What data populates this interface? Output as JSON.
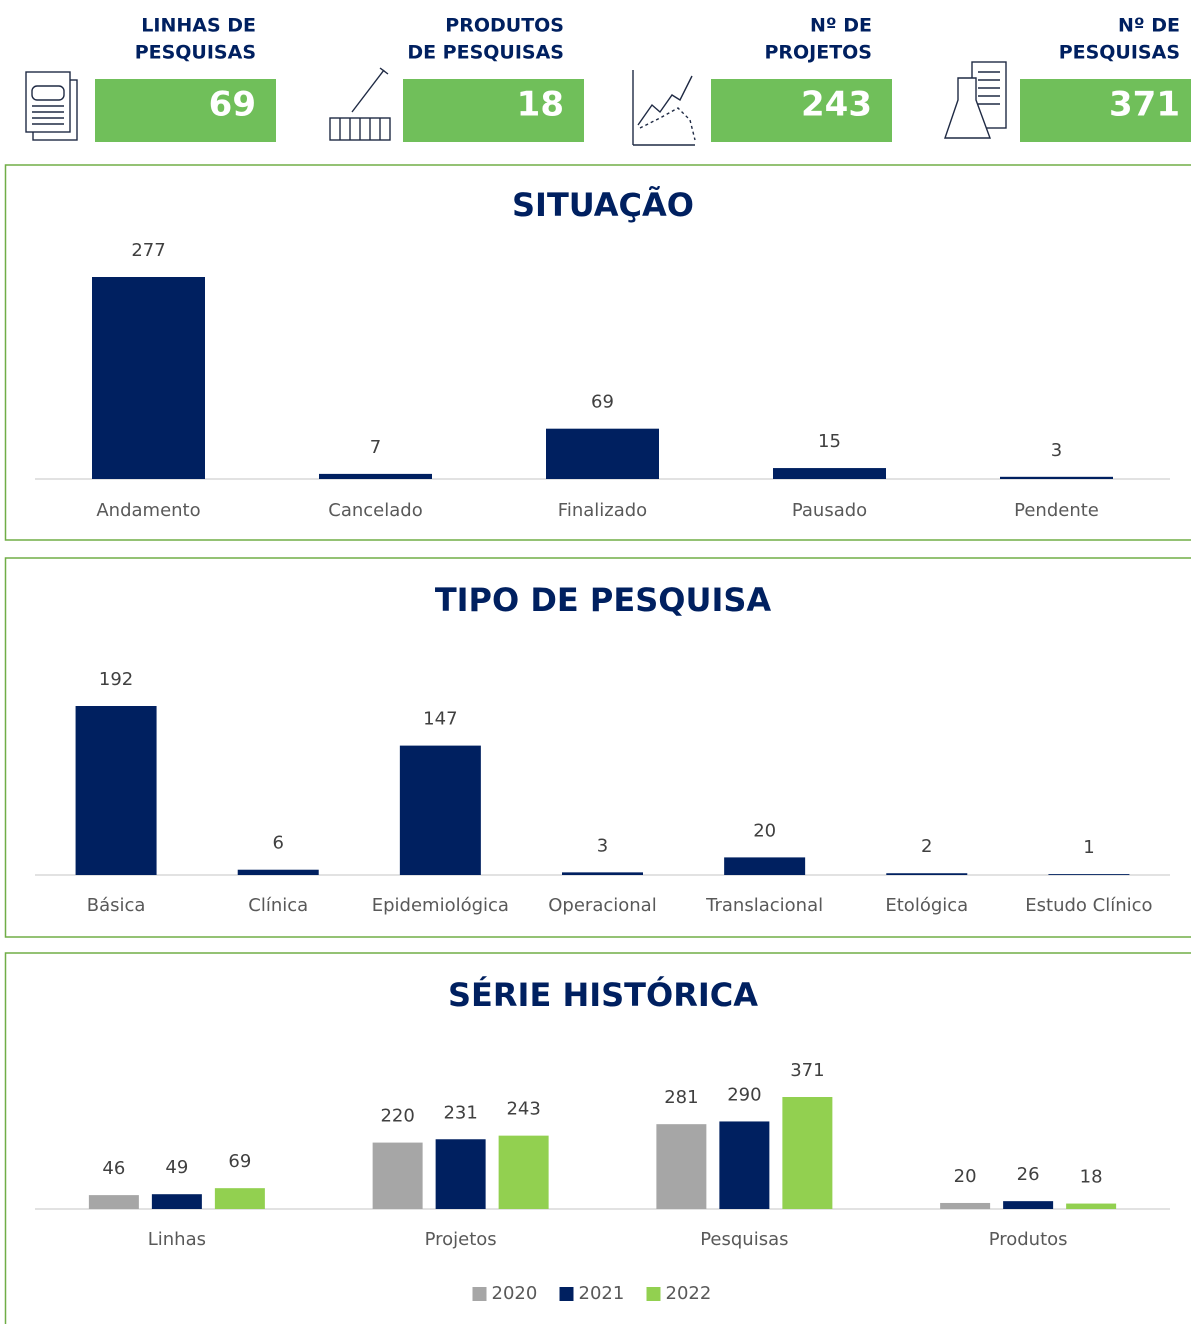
{
  "kpis": [
    {
      "label": [
        "LINHAS DE",
        "PESQUISAS"
      ],
      "value": "69"
    },
    {
      "label": [
        "PRODUTOS",
        "DE PESQUISAS"
      ],
      "value": "18"
    },
    {
      "label": [
        "Nº DE",
        "PROJETOS"
      ],
      "value": "243"
    },
    {
      "label": [
        "Nº DE",
        "PESQUISAS"
      ],
      "value": "371"
    }
  ],
  "chart_data": [
    {
      "type": "bar",
      "title": "SITUAÇÃO",
      "color": "#002060",
      "categories": [
        "Andamento",
        "Cancelado",
        "Finalizado",
        "Pausado",
        "Pendente"
      ],
      "values": [
        277,
        7,
        69,
        15,
        3
      ]
    },
    {
      "type": "bar",
      "title": "TIPO DE PESQUISA",
      "color": "#002060",
      "categories": [
        "Básica",
        "Clínica",
        "Epidemiológica",
        "Operacional",
        "Translacional",
        "Etológica",
        "Estudo Clínico"
      ],
      "values": [
        192,
        6,
        147,
        3,
        20,
        2,
        1
      ]
    },
    {
      "type": "grouped_bar",
      "title": "SÉRIE HISTÓRICA",
      "categories": [
        "Linhas",
        "Projetos",
        "Pesquisas",
        "Produtos"
      ],
      "series": [
        {
          "name": "2020",
          "color": "#a6a6a6",
          "values": [
            46,
            220,
            281,
            20
          ]
        },
        {
          "name": "2021",
          "color": "#002060",
          "values": [
            49,
            231,
            290,
            26
          ]
        },
        {
          "name": "2022",
          "color": "#92d050",
          "values": [
            69,
            243,
            371,
            18
          ]
        }
      ],
      "legend": "bottom"
    }
  ]
}
